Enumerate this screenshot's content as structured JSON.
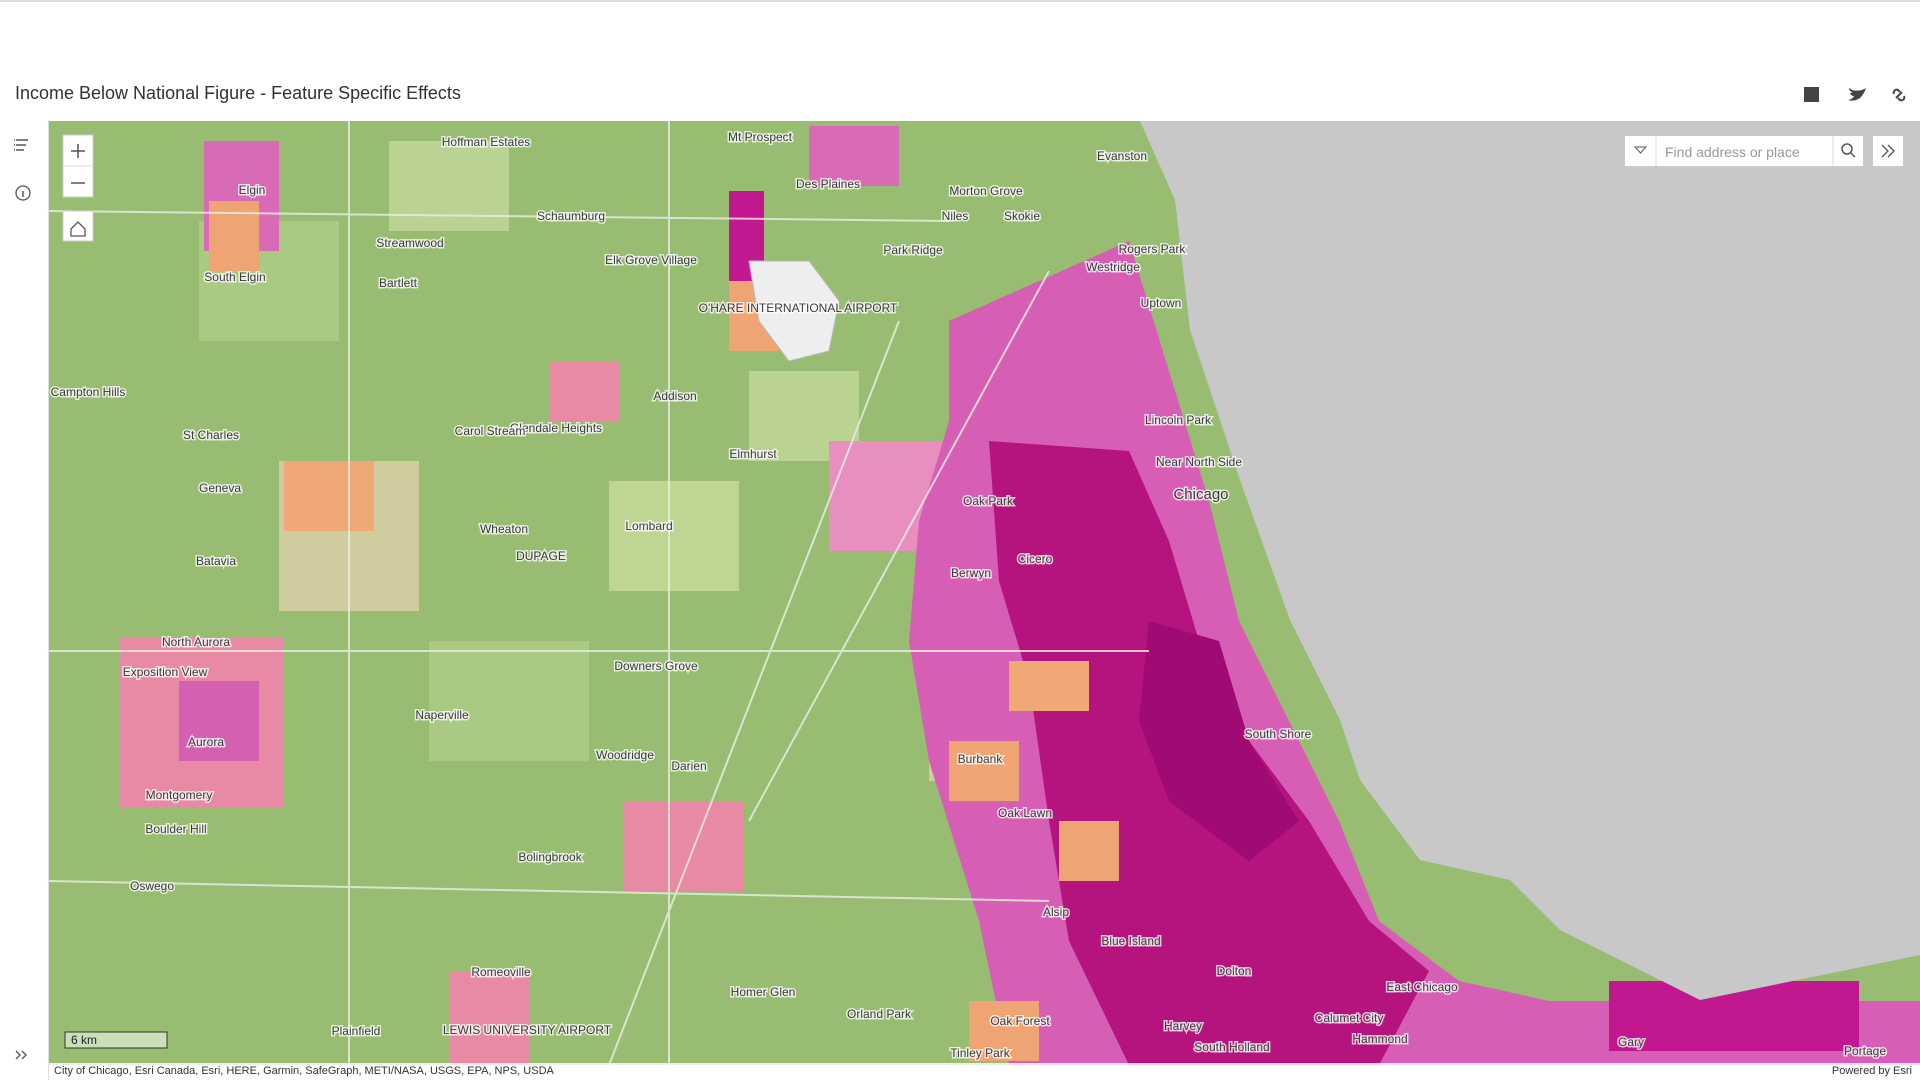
{
  "header": {
    "title": "Income Below National Figure - Feature Specific Effects"
  },
  "search": {
    "placeholder": "Find address or place"
  },
  "map": {
    "labels": [
      "Hoffman Estates",
      "Mt Prospect",
      "Evanston",
      "Elgin",
      "Des Plaines",
      "Morton Grove",
      "Schaumburg",
      "Niles",
      "Skokie",
      "Streamwood",
      "Elk Grove Village",
      "Park Ridge",
      "Rogers Park",
      "South Elgin",
      "Bartlett",
      "Westridge",
      "O'HARE INTERNATIONAL AIRPORT",
      "Uptown",
      "Campton Hills",
      "Addison",
      "Glendale Heights",
      "Carol Stream",
      "St Charles",
      "Lincoln Park",
      "Elmhurst",
      "Near North Side",
      "Geneva",
      "Chicago",
      "Oak Park",
      "Wheaton",
      "Lombard",
      "DUPAGE",
      "Cicero",
      "Batavia",
      "Berwyn",
      "North Aurora",
      "Exposition View",
      "Downers Grove",
      "Naperville",
      "Aurora",
      "South Shore",
      "Woodridge",
      "Darien",
      "Burbank",
      "Montgomery",
      "Oak Lawn",
      "Boulder Hill",
      "Bolingbrook",
      "Oswego",
      "Alsip",
      "Blue Island",
      "Romeoville",
      "Dolton",
      "East Chicago",
      "Homer Glen",
      "Orland Park",
      "Oak Forest",
      "Calumet City",
      "LEWIS UNIVERSITY AIRPORT",
      "Plainfield",
      "Harvey",
      "Hammond",
      "South Holland",
      "Tinley Park",
      "Gary",
      "Portage"
    ],
    "scale_bar": "6 km",
    "attribution": "City of Chicago, Esri Canada, Esri, HERE, Garmin, SafeGraph, METI/NASA, USGS, EPA, NPS, USDA",
    "powered_by": "Powered by Esri"
  }
}
